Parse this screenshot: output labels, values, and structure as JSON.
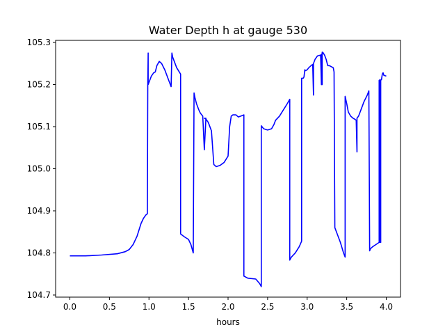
{
  "chart_data": {
    "type": "line",
    "title": "Water Depth h at gauge 530",
    "xlabel": "hours",
    "ylabel": "",
    "xlim": [
      -0.18,
      4.18
    ],
    "ylim": [
      104.695,
      105.305
    ],
    "xticks": [
      0.0,
      0.5,
      1.0,
      1.5,
      2.0,
      2.5,
      3.0,
      3.5,
      4.0
    ],
    "xtick_labels": [
      "0.0",
      "0.5",
      "1.0",
      "1.5",
      "2.0",
      "2.5",
      "3.0",
      "3.5",
      "4.0"
    ],
    "yticks": [
      104.7,
      104.8,
      104.9,
      105.0,
      105.1,
      105.2,
      105.3
    ],
    "ytick_labels": [
      "104.7",
      "104.8",
      "104.9",
      "105.0",
      "105.1",
      "105.2",
      "105.3"
    ],
    "grid": false,
    "line_color": "#0000ff",
    "series": [
      {
        "x": [
          0.0,
          0.2,
          0.4,
          0.6,
          0.7,
          0.75,
          0.8,
          0.85,
          0.9,
          0.93,
          0.96,
          0.98,
          0.985,
          0.99,
          0.99,
          1.0,
          1.03,
          1.06,
          1.08,
          1.1,
          1.13,
          1.16,
          1.2,
          1.25,
          1.28,
          1.29,
          1.3,
          1.35,
          1.4,
          1.4,
          1.45,
          1.5,
          1.53,
          1.56,
          1.57,
          1.58,
          1.6,
          1.63,
          1.65,
          1.68,
          1.7,
          1.72,
          1.7,
          1.72,
          1.75,
          1.79,
          1.82,
          1.82,
          1.85,
          1.9,
          1.95,
          2.0,
          2.02,
          2.04,
          2.06,
          2.1,
          2.13,
          2.16,
          2.2,
          2.2,
          2.25,
          2.35,
          2.4,
          2.42,
          2.42,
          2.45,
          2.5,
          2.55,
          2.58,
          2.6,
          2.65,
          2.7,
          2.75,
          2.78,
          2.78,
          2.8,
          2.85,
          2.9,
          2.93,
          2.93,
          2.95,
          2.96,
          2.97,
          2.98,
          3.0,
          3.02,
          3.05,
          3.07,
          3.08,
          3.08,
          3.08,
          3.1,
          3.13,
          3.17,
          3.18,
          3.18,
          3.19,
          3.19,
          3.2,
          3.22,
          3.24,
          3.26,
          3.28,
          3.3,
          3.33,
          3.34,
          3.35,
          3.35,
          3.38,
          3.42,
          3.46,
          3.48,
          3.48,
          3.5,
          3.52,
          3.55,
          3.58,
          3.6,
          3.62,
          3.63,
          3.63,
          3.63,
          3.65,
          3.68,
          3.72,
          3.76,
          3.78,
          3.79,
          3.8,
          3.83,
          3.87,
          3.91,
          3.91,
          3.92,
          3.92,
          3.93,
          3.93,
          3.94,
          3.95,
          3.96,
          3.97,
          4.0
        ],
        "y": [
          104.793,
          104.793,
          104.795,
          104.798,
          104.803,
          104.808,
          104.82,
          104.84,
          104.87,
          104.882,
          104.89,
          104.893,
          105.2,
          105.275,
          105.2,
          105.205,
          105.22,
          105.228,
          105.23,
          105.245,
          105.255,
          105.25,
          105.235,
          105.21,
          105.195,
          105.275,
          105.265,
          105.24,
          105.225,
          104.845,
          104.838,
          104.832,
          104.82,
          104.8,
          105.18,
          105.17,
          105.155,
          105.14,
          105.132,
          105.125,
          105.045,
          105.12,
          105.12,
          105.118,
          105.11,
          105.09,
          105.01,
          105.01,
          105.005,
          105.008,
          105.015,
          105.03,
          105.1,
          105.125,
          105.128,
          105.128,
          105.123,
          105.125,
          105.128,
          104.745,
          104.74,
          104.738,
          104.727,
          104.72,
          105.102,
          105.095,
          105.092,
          105.095,
          105.105,
          105.115,
          105.125,
          105.14,
          105.155,
          105.165,
          104.783,
          104.79,
          104.8,
          104.815,
          104.828,
          105.215,
          105.215,
          105.218,
          105.235,
          105.233,
          105.235,
          105.24,
          105.245,
          105.248,
          105.175,
          105.248,
          105.25,
          105.26,
          105.268,
          105.27,
          105.2,
          105.272,
          105.2,
          105.277,
          105.276,
          105.27,
          105.26,
          105.245,
          105.245,
          105.243,
          105.24,
          105.23,
          104.86,
          104.86,
          104.845,
          104.825,
          104.8,
          104.79,
          105.172,
          105.155,
          105.135,
          105.125,
          105.12,
          105.118,
          105.115,
          105.04,
          105.118,
          105.12,
          105.125,
          105.14,
          105.16,
          105.175,
          105.185,
          104.805,
          104.81,
          104.815,
          104.82,
          104.825,
          105.21,
          104.825,
          105.212,
          104.825,
          105.21,
          105.212,
          105.225,
          105.228,
          105.222,
          105.22
        ]
      }
    ]
  }
}
